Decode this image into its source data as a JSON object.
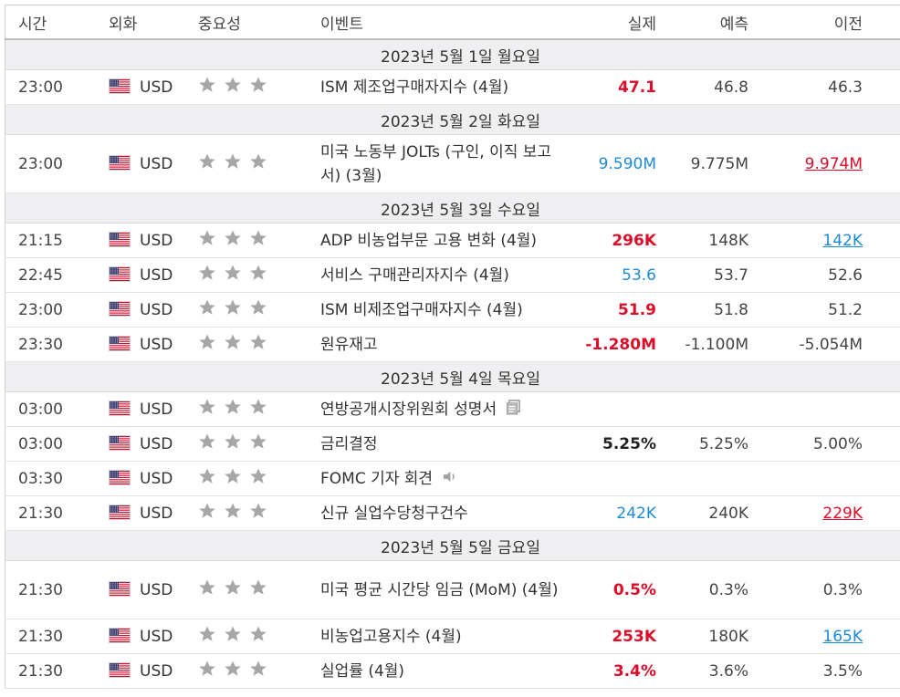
{
  "headers": {
    "time": "시간",
    "currency": "외화",
    "importance": "중요성",
    "event": "이벤트",
    "actual": "실제",
    "forecast": "예측",
    "previous": "이전"
  },
  "colors": {
    "red": "#dc0d29",
    "blue": "#1e8ad6",
    "star": "#a7a7a7",
    "day_bg": "#efeff1"
  },
  "days": [
    {
      "label": "2023년 5월 1일 월요일",
      "events": [
        {
          "time": "23:00",
          "currency": "USD",
          "event": "ISM 제조업구매자지수 (4월)",
          "actual": "47.1",
          "actual_style": "red",
          "forecast": "46.8",
          "previous": "46.3",
          "previous_style": "plain"
        }
      ]
    },
    {
      "label": "2023년 5월 2일 화요일",
      "events": [
        {
          "time": "23:00",
          "currency": "USD",
          "event": "미국 노동부 JOLTs (구인, 이직 보고서) (3월)",
          "tall": true,
          "actual": "9.590M",
          "actual_style": "blue",
          "forecast": "9.775M",
          "previous": "9.974M",
          "previous_style": "rev-red"
        }
      ]
    },
    {
      "label": "2023년 5월 3일 수요일",
      "events": [
        {
          "time": "21:15",
          "currency": "USD",
          "event": "ADP 비농업부문 고용 변화 (4월)",
          "actual": "296K",
          "actual_style": "red",
          "forecast": "148K",
          "previous": "142K",
          "previous_style": "rev-blue"
        },
        {
          "time": "22:45",
          "currency": "USD",
          "event": "서비스 구매관리자지수 (4월)",
          "actual": "53.6",
          "actual_style": "blue",
          "forecast": "53.7",
          "previous": "52.6",
          "previous_style": "plain"
        },
        {
          "time": "23:00",
          "currency": "USD",
          "event": "ISM 비제조업구매자지수 (4월)",
          "actual": "51.9",
          "actual_style": "red",
          "forecast": "51.8",
          "previous": "51.2",
          "previous_style": "plain"
        },
        {
          "time": "23:30",
          "currency": "USD",
          "event": "원유재고",
          "actual": "-1.280M",
          "actual_style": "red",
          "forecast": "-1.100M",
          "previous": "-5.054M",
          "previous_style": "plain"
        }
      ]
    },
    {
      "label": "2023년 5월 4일 목요일",
      "events": [
        {
          "time": "03:00",
          "currency": "USD",
          "event": "연방공개시장위원회 성명서",
          "icon": "document-icon",
          "actual": "",
          "actual_style": "plain",
          "forecast": "",
          "previous": "",
          "previous_style": "plain"
        },
        {
          "time": "03:00",
          "currency": "USD",
          "event": "금리결정",
          "actual": "5.25%",
          "actual_style": "black",
          "forecast": "5.25%",
          "previous": "5.00%",
          "previous_style": "plain"
        },
        {
          "time": "03:30",
          "currency": "USD",
          "event": "FOMC 기자 회견",
          "icon": "speaker-icon",
          "actual": "",
          "actual_style": "plain",
          "forecast": "",
          "previous": "",
          "previous_style": "plain"
        },
        {
          "time": "21:30",
          "currency": "USD",
          "event": "신규 실업수당청구건수",
          "actual": "242K",
          "actual_style": "blue",
          "forecast": "240K",
          "previous": "229K",
          "previous_style": "rev-red"
        }
      ]
    },
    {
      "label": "2023년 5월 5일 금요일",
      "events": [
        {
          "time": "21:30",
          "currency": "USD",
          "event": "미국 평균 시간당 임금 (MoM) (4월)",
          "tall": true,
          "actual": "0.5%",
          "actual_style": "red",
          "forecast": "0.3%",
          "previous": "0.3%",
          "previous_style": "plain"
        },
        {
          "time": "21:30",
          "currency": "USD",
          "event": "비농업고용지수 (4월)",
          "actual": "253K",
          "actual_style": "red",
          "forecast": "180K",
          "previous": "165K",
          "previous_style": "rev-blue"
        },
        {
          "time": "21:30",
          "currency": "USD",
          "event": "실업률 (4월)",
          "actual": "3.4%",
          "actual_style": "red",
          "forecast": "3.6%",
          "previous": "3.5%",
          "previous_style": "plain"
        }
      ]
    }
  ]
}
